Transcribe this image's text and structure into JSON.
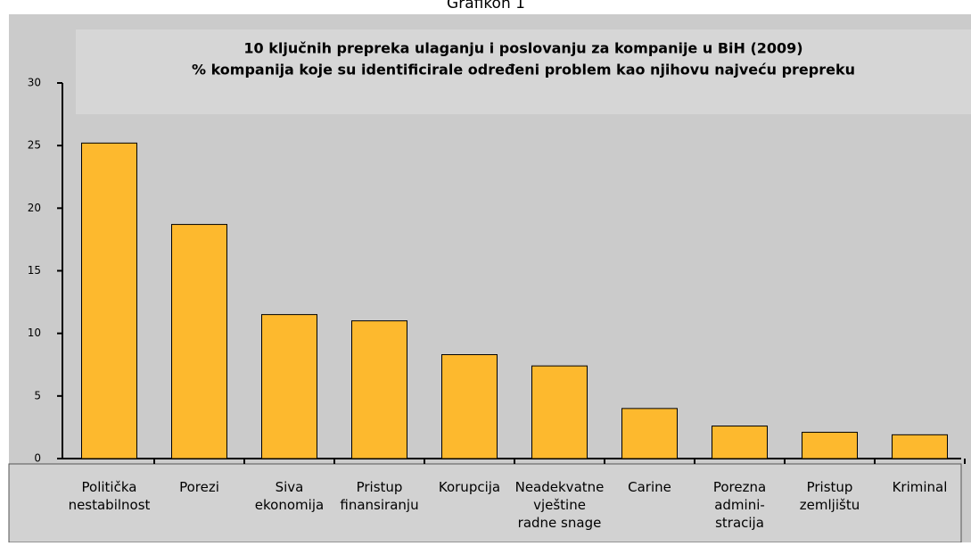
{
  "caption": "Grafikon 1",
  "chart_data": {
    "type": "bar",
    "title": "10 ključnih prepreka ulaganju i poslovanju za kompanije u BiH (2009)",
    "subtitle": "% kompanija koje su identificirale određeni problem kao njihovu najveću prepreku",
    "categories": [
      "Politička\nnestabilnost",
      "Porezi",
      "Siva\nekonomija",
      "Pristup\nfinansiranju",
      "Korupcija",
      "Neadekvatne\nvještine\nradne snage",
      "Carine",
      "Porezna\nadmini-\nstracija",
      "Pristup\nzemljištu",
      "Kriminal"
    ],
    "values": [
      25.2,
      18.7,
      11.5,
      11.0,
      8.3,
      7.4,
      4.0,
      2.6,
      2.1,
      1.9
    ],
    "color": "#fdb92e",
    "ylim": [
      0,
      30
    ],
    "yticks": [
      0,
      5,
      10,
      15,
      20,
      25,
      30
    ]
  }
}
